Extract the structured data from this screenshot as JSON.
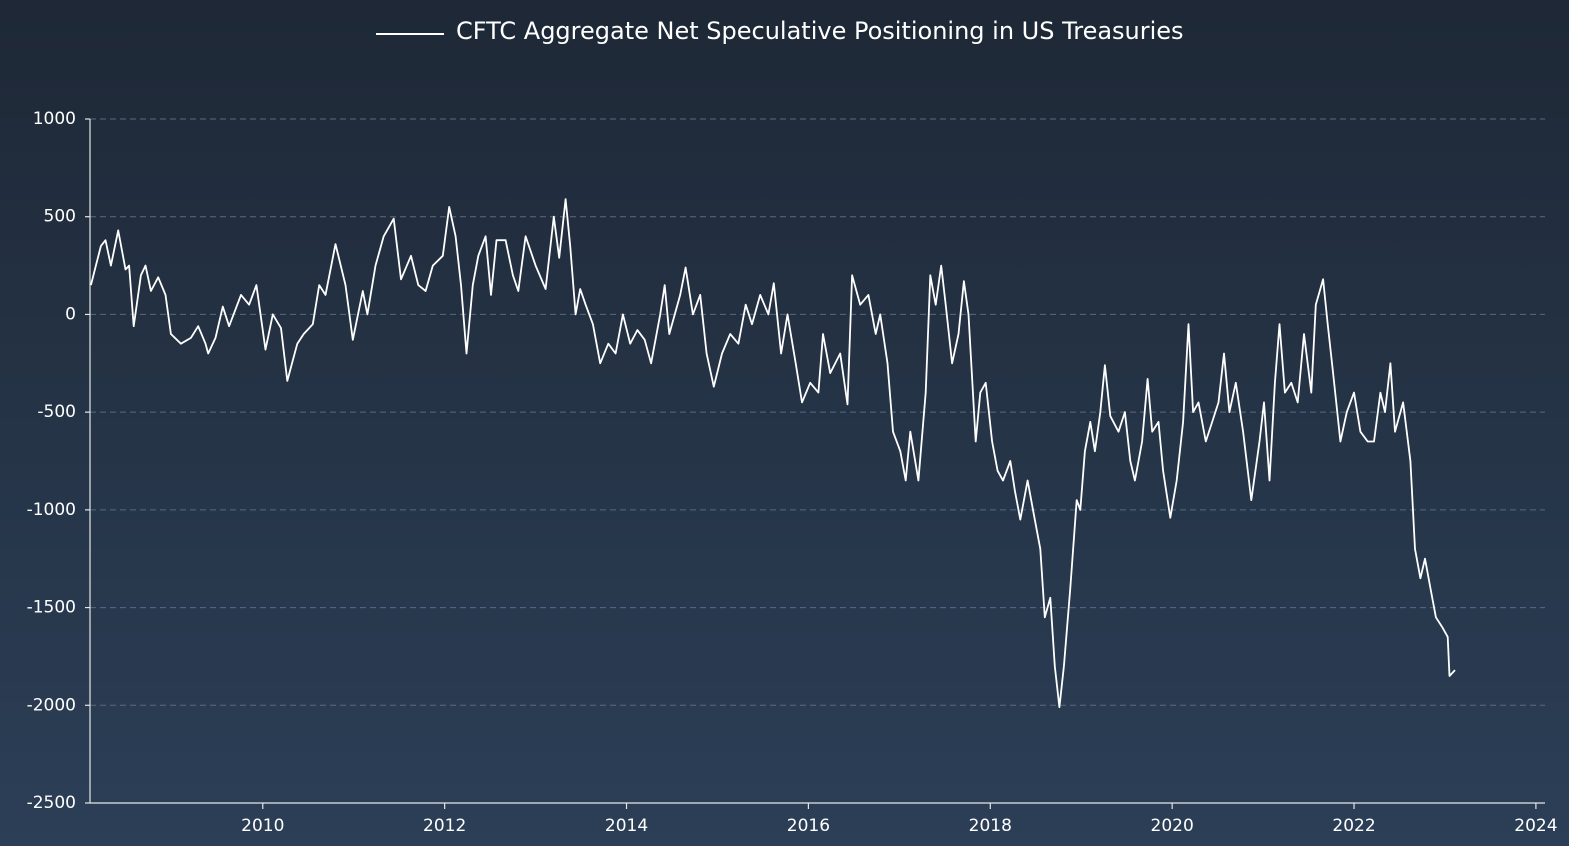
{
  "chart_data": {
    "type": "line",
    "legend": "top",
    "grid": true,
    "xlim": [
      2008.1,
      2024.1
    ],
    "xticks": [
      2010,
      2012,
      2014,
      2016,
      2018,
      2020,
      2022,
      2024
    ],
    "ylim": [
      -2500,
      1000
    ],
    "yticks": [
      1000,
      500,
      0,
      -500,
      -1000,
      -1500,
      -2000,
      -2500
    ],
    "x": [
      2008.11,
      2008.22,
      2008.27,
      2008.33,
      2008.41,
      2008.49,
      2008.53,
      2008.58,
      2008.66,
      2008.71,
      2008.77,
      2008.85,
      2008.93,
      2008.99,
      2009.1,
      2009.21,
      2009.29,
      2009.37,
      2009.4,
      2009.48,
      2009.56,
      2009.63,
      2009.76,
      2009.85,
      2009.93,
      2010.03,
      2010.11,
      2010.2,
      2010.27,
      2010.38,
      2010.45,
      2010.55,
      2010.62,
      2010.69,
      2010.8,
      2010.91,
      2010.99,
      2011.1,
      2011.15,
      2011.24,
      2011.33,
      2011.44,
      2011.52,
      2011.63,
      2011.71,
      2011.79,
      2011.87,
      2011.98,
      2012.05,
      2012.12,
      2012.18,
      2012.24,
      2012.31,
      2012.37,
      2012.45,
      2012.51,
      2012.57,
      2012.67,
      2012.75,
      2012.81,
      2012.89,
      2013.0,
      2013.11,
      2013.2,
      2013.26,
      2013.33,
      2013.38,
      2013.44,
      2013.49,
      2013.55,
      2013.63,
      2013.71,
      2013.8,
      2013.88,
      2013.96,
      2014.04,
      2014.12,
      2014.2,
      2014.27,
      2014.37,
      2014.42,
      2014.47,
      2014.59,
      2014.65,
      2014.73,
      2014.81,
      2014.88,
      2014.96,
      2015.05,
      2015.14,
      2015.23,
      2015.31,
      2015.38,
      2015.47,
      2015.56,
      2015.62,
      2015.7,
      2015.77,
      2015.86,
      2015.93,
      2016.02,
      2016.11,
      2016.16,
      2016.24,
      2016.35,
      2016.43,
      2016.48,
      2016.57,
      2016.66,
      2016.74,
      2016.79,
      2016.87,
      2016.93,
      2017.01,
      2017.07,
      2017.12,
      2017.21,
      2017.29,
      2017.34,
      2017.4,
      2017.46,
      2017.51,
      2017.58,
      2017.65,
      2017.71,
      2017.76,
      2017.84,
      2017.89,
      2017.95,
      2018.02,
      2018.08,
      2018.14,
      2018.22,
      2018.27,
      2018.33,
      2018.41,
      2018.47,
      2018.55,
      2018.6,
      2018.66,
      2018.71,
      2018.76,
      2018.81,
      2018.88,
      2018.95,
      2018.99,
      2019.04,
      2019.1,
      2019.15,
      2019.21,
      2019.26,
      2019.32,
      2019.41,
      2019.48,
      2019.54,
      2019.59,
      2019.67,
      2019.73,
      2019.78,
      2019.85,
      2019.9,
      2019.98,
      2020.05,
      2020.12,
      2020.18,
      2020.23,
      2020.29,
      2020.37,
      2020.44,
      2020.51,
      2020.57,
      2020.63,
      2020.7,
      2020.78,
      2020.87,
      2020.96,
      2021.01,
      2021.07,
      2021.13,
      2021.18,
      2021.24,
      2021.31,
      2021.38,
      2021.45,
      2021.53,
      2021.58,
      2021.66,
      2021.71,
      2021.77,
      2021.85,
      2021.92,
      2022.0,
      2022.07,
      2022.15,
      2022.22,
      2022.29,
      2022.34,
      2022.4,
      2022.45,
      2022.54,
      2022.62,
      2022.67,
      2022.73,
      2022.78,
      2022.84,
      2022.9,
      2022.97,
      2023.03,
      2023.05,
      2023.11
    ],
    "series": [
      {
        "name": "CFTC Aggregate Net Speculative Positioning in US Treasuries",
        "color": "#ffffff",
        "values": [
          150,
          350,
          380,
          250,
          430,
          230,
          250,
          -60,
          200,
          250,
          120,
          190,
          100,
          -100,
          -150,
          -120,
          -60,
          -150,
          -200,
          -120,
          40,
          -60,
          100,
          50,
          150,
          -180,
          0,
          -70,
          -340,
          -150,
          -100,
          -50,
          150,
          100,
          360,
          150,
          -130,
          120,
          0,
          250,
          400,
          490,
          180,
          300,
          150,
          120,
          250,
          300,
          550,
          400,
          150,
          -200,
          150,
          300,
          400,
          100,
          380,
          380,
          200,
          120,
          400,
          250,
          130,
          500,
          290,
          590,
          350,
          0,
          130,
          50,
          -50,
          -250,
          -150,
          -200,
          0,
          -150,
          -80,
          -130,
          -250,
          0,
          150,
          -100,
          100,
          240,
          0,
          100,
          -200,
          -370,
          -200,
          -100,
          -150,
          50,
          -50,
          100,
          0,
          160,
          -200,
          0,
          -250,
          -450,
          -350,
          -400,
          -100,
          -300,
          -200,
          -460,
          200,
          50,
          100,
          -100,
          0,
          -250,
          -600,
          -700,
          -850,
          -600,
          -850,
          -400,
          200,
          50,
          250,
          50,
          -250,
          -100,
          170,
          0,
          -650,
          -400,
          -350,
          -650,
          -800,
          -850,
          -750,
          -900,
          -1050,
          -850,
          -1000,
          -1200,
          -1550,
          -1450,
          -1800,
          -2010,
          -1800,
          -1400,
          -950,
          -1000,
          -700,
          -550,
          -700,
          -500,
          -260,
          -520,
          -600,
          -500,
          -750,
          -850,
          -650,
          -330,
          -600,
          -550,
          -800,
          -1040,
          -850,
          -550,
          -50,
          -500,
          -450,
          -650,
          -550,
          -450,
          -200,
          -500,
          -350,
          -600,
          -950,
          -650,
          -450,
          -850,
          -350,
          -50,
          -400,
          -350,
          -450,
          -100,
          -400,
          50,
          180,
          -50,
          -300,
          -650,
          -500,
          -400,
          -600,
          -650,
          -650,
          -400,
          -500,
          -250,
          -600,
          -450,
          -750,
          -1200,
          -1350,
          -1250,
          -1400,
          -1550,
          -1600,
          -1650,
          -1850,
          -1820
        ]
      }
    ]
  }
}
